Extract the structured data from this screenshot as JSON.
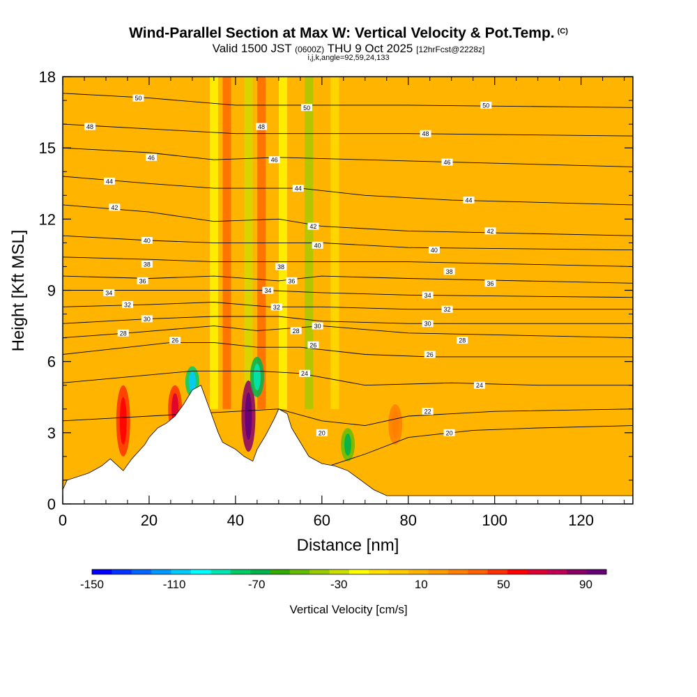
{
  "chart_data": {
    "type": "heatmap",
    "title": "Wind-Parallel Section at Max W: Vertical Velocity & Pot.Temp.",
    "title_mark": "(C)",
    "subtitle_main": "Valid 1500 JST",
    "subtitle_utc": "(0600Z)",
    "subtitle_date": "THU 9 Oct 2025",
    "subtitle_fcst": "[12hrFcst@2228z]",
    "params": "i,j,k,angle=92,59,24,133",
    "xlabel": "Distance [nm]",
    "ylabel": "Height [Kft MSL]",
    "xlim": [
      0,
      132
    ],
    "ylim": [
      0,
      18
    ],
    "xticks": [
      0,
      20,
      40,
      60,
      80,
      100,
      120
    ],
    "yticks": [
      0,
      3,
      6,
      9,
      12,
      15,
      18
    ],
    "colorbar": {
      "title": "Vertical Velocity [cm/s]",
      "min": -150,
      "max": 100,
      "labels": [
        -150,
        -110,
        -70,
        -30,
        10,
        50,
        90
      ],
      "colors": [
        "#0000ff",
        "#0033ff",
        "#0066ff",
        "#0099ff",
        "#00ccff",
        "#00ffff",
        "#00e6b3",
        "#00cc66",
        "#00b34d",
        "#33aa00",
        "#66bb00",
        "#99cc00",
        "#ccdd00",
        "#ffff00",
        "#ffe000",
        "#ffcc00",
        "#ffb400",
        "#ff9c00",
        "#ff8000",
        "#ff6000",
        "#ff3000",
        "#ff0000",
        "#dd0033",
        "#bb0055",
        "#880066",
        "#660077"
      ]
    },
    "background_vertical_velocity": 5,
    "updraft_features": [
      {
        "x": 14,
        "zmin": 2,
        "zmax": 5,
        "w": 45
      },
      {
        "x": 26,
        "zmin": 3,
        "zmax": 5,
        "w": 50
      },
      {
        "x": 30,
        "zmin": 4.5,
        "zmax": 5.8,
        "w": -80
      },
      {
        "x": 43,
        "zmin": 2.2,
        "zmax": 5.2,
        "w": 90
      },
      {
        "x": 45,
        "zmin": 4.5,
        "zmax": 6.2,
        "w": -70
      },
      {
        "x": 66,
        "zmin": 1.8,
        "zmax": 3.2,
        "w": -50
      },
      {
        "x": 77,
        "zmin": 2.5,
        "zmax": 4.2,
        "w": 25
      }
    ],
    "vertical_streaks": [
      {
        "x": 35,
        "w": -25
      },
      {
        "x": 38,
        "w": 40
      },
      {
        "x": 43,
        "w": -30
      },
      {
        "x": 46,
        "w": 35
      },
      {
        "x": 51,
        "w": -20
      },
      {
        "x": 57,
        "w": -35
      },
      {
        "x": 63,
        "w": -15
      }
    ],
    "terrain_profile": [
      [
        0,
        0.6
      ],
      [
        1,
        1.0
      ],
      [
        6,
        1.3
      ],
      [
        9,
        1.6
      ],
      [
        11,
        1.9
      ],
      [
        14,
        1.4
      ],
      [
        16,
        1.9
      ],
      [
        19,
        2.5
      ],
      [
        20,
        2.8
      ],
      [
        22,
        3.2
      ],
      [
        24,
        3.4
      ],
      [
        26,
        3.7
      ],
      [
        28,
        4.2
      ],
      [
        30,
        4.8
      ],
      [
        32,
        5.0
      ],
      [
        33,
        4.5
      ],
      [
        34,
        4.0
      ],
      [
        35,
        3.5
      ],
      [
        36,
        3.0
      ],
      [
        37,
        2.6
      ],
      [
        38,
        2.5
      ],
      [
        40,
        2.3
      ],
      [
        42,
        2.0
      ],
      [
        43,
        1.9
      ],
      [
        44,
        1.8
      ],
      [
        45,
        2.3
      ],
      [
        47,
        2.9
      ],
      [
        49,
        3.6
      ],
      [
        50,
        4.0
      ],
      [
        52,
        3.8
      ],
      [
        53,
        3.2
      ],
      [
        55,
        2.6
      ],
      [
        57,
        2.0
      ],
      [
        60,
        1.7
      ],
      [
        63,
        1.6
      ],
      [
        66,
        1.4
      ],
      [
        69,
        1.0
      ],
      [
        72,
        0.6
      ],
      [
        75,
        0.35
      ],
      [
        132,
        0.35
      ]
    ],
    "isentropes": [
      {
        "theta": 20,
        "ys": [
          [
            0,
            1.0
          ],
          [
            60,
            1.5
          ],
          [
            70,
            2.1
          ],
          [
            80,
            2.8
          ],
          [
            95,
            3.1
          ],
          [
            110,
            3.2
          ],
          [
            132,
            3.3
          ]
        ]
      },
      {
        "theta": 22,
        "ys": [
          [
            0,
            3.5
          ],
          [
            50,
            4.0
          ],
          [
            60,
            3.5
          ],
          [
            70,
            3.3
          ],
          [
            80,
            3.7
          ],
          [
            100,
            3.9
          ],
          [
            132,
            4.0
          ]
        ]
      },
      {
        "theta": 24,
        "ys": [
          [
            0,
            5.1
          ],
          [
            30,
            5.6
          ],
          [
            45,
            5.6
          ],
          [
            55,
            5.5
          ],
          [
            70,
            5.0
          ],
          [
            90,
            5.1
          ],
          [
            110,
            5.0
          ],
          [
            132,
            5.0
          ]
        ]
      },
      {
        "theta": 26,
        "ys": [
          [
            0,
            6.3
          ],
          [
            25,
            6.8
          ],
          [
            35,
            6.8
          ],
          [
            45,
            6.6
          ],
          [
            55,
            6.6
          ],
          [
            70,
            6.3
          ],
          [
            85,
            6.2
          ],
          [
            132,
            6.2
          ]
        ]
      },
      {
        "theta": 28,
        "ys": [
          [
            0,
            7.0
          ],
          [
            15,
            7.2
          ],
          [
            35,
            7.5
          ],
          [
            45,
            7.3
          ],
          [
            60,
            7.5
          ],
          [
            80,
            7.2
          ],
          [
            132,
            7.0
          ]
        ]
      },
      {
        "theta": 30,
        "ys": [
          [
            0,
            7.6
          ],
          [
            20,
            7.8
          ],
          [
            35,
            7.9
          ],
          [
            50,
            7.9
          ],
          [
            60,
            7.7
          ],
          [
            80,
            7.6
          ],
          [
            132,
            7.6
          ]
        ]
      },
      {
        "theta": 32,
        "ys": [
          [
            0,
            8.3
          ],
          [
            20,
            8.4
          ],
          [
            35,
            8.5
          ],
          [
            48,
            8.3
          ],
          [
            60,
            8.3
          ],
          [
            80,
            8.2
          ],
          [
            132,
            8.2
          ]
        ]
      },
      {
        "theta": 34,
        "ys": [
          [
            0,
            9.0
          ],
          [
            20,
            9.0
          ],
          [
            35,
            9.0
          ],
          [
            47,
            9.0
          ],
          [
            60,
            8.9
          ],
          [
            80,
            8.8
          ],
          [
            132,
            8.7
          ]
        ]
      },
      {
        "theta": 36,
        "ys": [
          [
            0,
            9.6
          ],
          [
            20,
            9.5
          ],
          [
            35,
            9.6
          ],
          [
            50,
            9.4
          ],
          [
            60,
            9.6
          ],
          [
            80,
            9.5
          ],
          [
            132,
            9.3
          ]
        ]
      },
      {
        "theta": 38,
        "ys": [
          [
            0,
            10.4
          ],
          [
            20,
            10.3
          ],
          [
            35,
            10.2
          ],
          [
            50,
            10.2
          ],
          [
            60,
            10.2
          ],
          [
            80,
            10.2
          ],
          [
            132,
            10.0
          ]
        ]
      },
      {
        "theta": 40,
        "ys": [
          [
            0,
            11.3
          ],
          [
            20,
            11.1
          ],
          [
            35,
            11.0
          ],
          [
            50,
            11.0
          ],
          [
            60,
            11.0
          ],
          [
            80,
            10.8
          ],
          [
            132,
            10.7
          ]
        ]
      },
      {
        "theta": 42,
        "ys": [
          [
            0,
            12.6
          ],
          [
            20,
            12.3
          ],
          [
            35,
            11.9
          ],
          [
            50,
            12.0
          ],
          [
            60,
            11.7
          ],
          [
            80,
            11.5
          ],
          [
            132,
            11.3
          ]
        ]
      },
      {
        "theta": 44,
        "ys": [
          [
            0,
            13.8
          ],
          [
            20,
            13.5
          ],
          [
            35,
            13.3
          ],
          [
            55,
            13.3
          ],
          [
            70,
            13.0
          ],
          [
            90,
            12.8
          ],
          [
            132,
            12.6
          ]
        ]
      },
      {
        "theta": 46,
        "ys": [
          [
            0,
            15.0
          ],
          [
            20,
            14.8
          ],
          [
            35,
            14.5
          ],
          [
            50,
            14.6
          ],
          [
            70,
            14.5
          ],
          [
            90,
            14.4
          ],
          [
            132,
            14.2
          ]
        ]
      },
      {
        "theta": 48,
        "ys": [
          [
            0,
            16.0
          ],
          [
            20,
            15.8
          ],
          [
            40,
            15.6
          ],
          [
            60,
            15.6
          ],
          [
            80,
            15.6
          ],
          [
            132,
            15.5
          ]
        ]
      },
      {
        "theta": 50,
        "ys": [
          [
            0,
            17.3
          ],
          [
            20,
            17.1
          ],
          [
            40,
            16.8
          ],
          [
            60,
            16.8
          ],
          [
            80,
            16.8
          ],
          [
            132,
            16.7
          ]
        ]
      }
    ],
    "contour_labels": [
      {
        "text": "50",
        "x": 17.5,
        "y": 17.1
      },
      {
        "text": "50",
        "x": 56.5,
        "y": 16.7
      },
      {
        "text": "50",
        "x": 98,
        "y": 16.8
      },
      {
        "text": "48",
        "x": 6.3,
        "y": 15.9
      },
      {
        "text": "48",
        "x": 46,
        "y": 15.9
      },
      {
        "text": "48",
        "x": 84,
        "y": 15.6
      },
      {
        "text": "46",
        "x": 20.5,
        "y": 14.6
      },
      {
        "text": "46",
        "x": 49,
        "y": 14.5
      },
      {
        "text": "46",
        "x": 89,
        "y": 14.4
      },
      {
        "text": "44",
        "x": 10.8,
        "y": 13.6
      },
      {
        "text": "44",
        "x": 54.5,
        "y": 13.3
      },
      {
        "text": "44",
        "x": 94,
        "y": 12.8
      },
      {
        "text": "42",
        "x": 12,
        "y": 12.5
      },
      {
        "text": "42",
        "x": 58,
        "y": 11.7
      },
      {
        "text": "42",
        "x": 99,
        "y": 11.5
      },
      {
        "text": "40",
        "x": 19.5,
        "y": 11.1
      },
      {
        "text": "40",
        "x": 59,
        "y": 10.9
      },
      {
        "text": "40",
        "x": 86,
        "y": 10.7
      },
      {
        "text": "38",
        "x": 19.5,
        "y": 10.1
      },
      {
        "text": "38",
        "x": 50.5,
        "y": 10.0
      },
      {
        "text": "38",
        "x": 89.5,
        "y": 9.8
      },
      {
        "text": "36",
        "x": 18.5,
        "y": 9.4
      },
      {
        "text": "36",
        "x": 53,
        "y": 9.4
      },
      {
        "text": "36",
        "x": 99,
        "y": 9.3
      },
      {
        "text": "34",
        "x": 10.7,
        "y": 8.9
      },
      {
        "text": "34",
        "x": 47.5,
        "y": 9.0
      },
      {
        "text": "34",
        "x": 84.5,
        "y": 8.8
      },
      {
        "text": "32",
        "x": 15,
        "y": 8.4
      },
      {
        "text": "32",
        "x": 49.5,
        "y": 8.3
      },
      {
        "text": "32",
        "x": 89,
        "y": 8.2
      },
      {
        "text": "30",
        "x": 19.5,
        "y": 7.8
      },
      {
        "text": "30",
        "x": 59,
        "y": 7.5
      },
      {
        "text": "30",
        "x": 84.5,
        "y": 7.6
      },
      {
        "text": "28",
        "x": 14,
        "y": 7.2
      },
      {
        "text": "28",
        "x": 54,
        "y": 7.3
      },
      {
        "text": "28",
        "x": 92.5,
        "y": 6.9
      },
      {
        "text": "26",
        "x": 26,
        "y": 6.9
      },
      {
        "text": "26",
        "x": 58,
        "y": 6.7
      },
      {
        "text": "26",
        "x": 85,
        "y": 6.3
      },
      {
        "text": "24",
        "x": 56,
        "y": 5.5
      },
      {
        "text": "24",
        "x": 96.5,
        "y": 5.0
      },
      {
        "text": "22",
        "x": 84.5,
        "y": 3.9
      },
      {
        "text": "20",
        "x": 89.5,
        "y": 3.0
      },
      {
        "text": "20",
        "x": 60,
        "y": 3.0
      }
    ]
  }
}
